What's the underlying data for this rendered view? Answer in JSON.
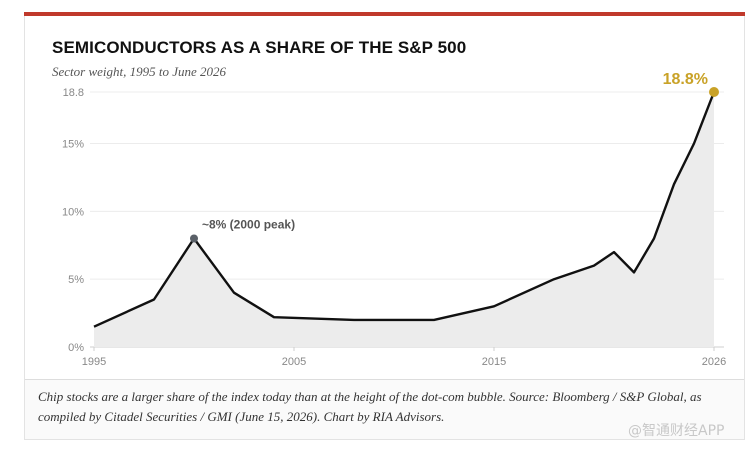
{
  "header": {
    "title": "SEMICONDUCTORS AS A SHARE OF THE S&P 500",
    "subtitle": "Sector weight, 1995 to June 2026"
  },
  "colors": {
    "accent_bar": "#c0392b",
    "line": "#111111",
    "area_fill": "#ececec",
    "highlight": "#c9a227",
    "peak_marker": "#5a6068"
  },
  "chart_data": {
    "type": "line",
    "title": "SEMICONDUCTORS AS A SHARE OF THE S&P 500",
    "subtitle": "Sector weight, 1995 to June 2026",
    "xlabel": "",
    "ylabel": "",
    "xlim": [
      1995,
      2026
    ],
    "ylim": [
      0,
      18.8
    ],
    "x_ticks": [
      1995,
      2005,
      2015,
      2026
    ],
    "y_ticks": [
      {
        "value": 0,
        "label": "0%"
      },
      {
        "value": 5,
        "label": "5%"
      },
      {
        "value": 10,
        "label": "10%"
      },
      {
        "value": 15,
        "label": "15%"
      },
      {
        "value": 18.8,
        "label": "18.8"
      }
    ],
    "grid": true,
    "series": [
      {
        "x": [
          1995,
          1998,
          2000,
          2002,
          2004,
          2008,
          2012,
          2015,
          2018,
          2020,
          2021,
          2022,
          2023,
          2024,
          2025,
          2026
        ],
        "y": [
          1.5,
          3.5,
          8,
          4,
          2.2,
          2.0,
          2.0,
          3.0,
          5.0,
          6.0,
          7.0,
          5.5,
          8.0,
          12.0,
          15.0,
          18.8
        ]
      }
    ],
    "annotations": [
      {
        "x": 2000,
        "y": 8,
        "text": "~8% (2000 peak)"
      },
      {
        "x": 2026,
        "y": 18.8,
        "text": "18.8%"
      }
    ]
  },
  "caption": "Chip stocks are a larger share of the index today than at the height of the dot-com bubble. Source: Bloomberg / S&P Global, as compiled by Citadel Securities / GMI (June 15, 2026). Chart by RIA Advisors.",
  "watermark": "@智通财经APP"
}
